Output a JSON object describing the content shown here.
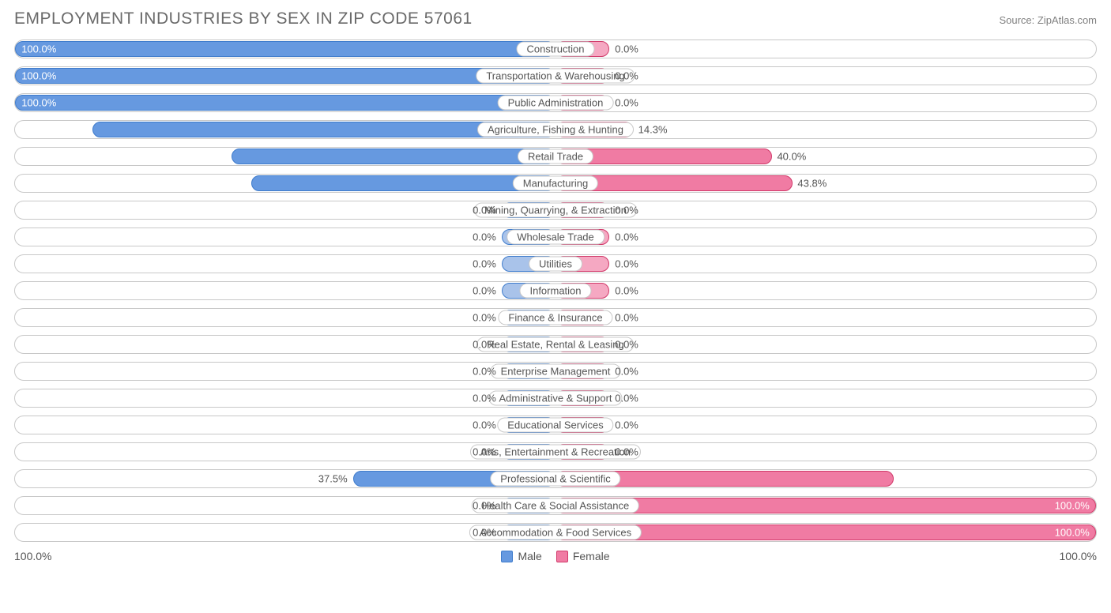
{
  "title": "EMPLOYMENT INDUSTRIES BY SEX IN ZIP CODE 57061",
  "source": "Source: ZipAtlas.com",
  "axis_left_label": "100.0%",
  "axis_right_label": "100.0%",
  "legend": {
    "male": "Male",
    "female": "Female"
  },
  "colors": {
    "male_fill": "#6699e0",
    "male_light": "#a9c3ea",
    "male_border": "#3f7ccc",
    "female_fill": "#f07ba3",
    "female_light": "#f5a8c2",
    "female_border": "#d13a6a",
    "row_border": "#c8c8c8",
    "text": "#555555",
    "text_white": "#ffffff"
  },
  "chart": {
    "type": "diverging_bar",
    "min_bar_pct": 10,
    "rows": [
      {
        "label": "Construction",
        "male": 100.0,
        "female": 0.0
      },
      {
        "label": "Transportation & Warehousing",
        "male": 100.0,
        "female": 0.0
      },
      {
        "label": "Public Administration",
        "male": 100.0,
        "female": 0.0
      },
      {
        "label": "Agriculture, Fishing & Hunting",
        "male": 85.7,
        "female": 14.3
      },
      {
        "label": "Retail Trade",
        "male": 60.0,
        "female": 40.0
      },
      {
        "label": "Manufacturing",
        "male": 56.3,
        "female": 43.8
      },
      {
        "label": "Mining, Quarrying, & Extraction",
        "male": 0.0,
        "female": 0.0
      },
      {
        "label": "Wholesale Trade",
        "male": 0.0,
        "female": 0.0
      },
      {
        "label": "Utilities",
        "male": 0.0,
        "female": 0.0
      },
      {
        "label": "Information",
        "male": 0.0,
        "female": 0.0
      },
      {
        "label": "Finance & Insurance",
        "male": 0.0,
        "female": 0.0
      },
      {
        "label": "Real Estate, Rental & Leasing",
        "male": 0.0,
        "female": 0.0
      },
      {
        "label": "Enterprise Management",
        "male": 0.0,
        "female": 0.0
      },
      {
        "label": "Administrative & Support",
        "male": 0.0,
        "female": 0.0
      },
      {
        "label": "Educational Services",
        "male": 0.0,
        "female": 0.0
      },
      {
        "label": "Arts, Entertainment & Recreation",
        "male": 0.0,
        "female": 0.0
      },
      {
        "label": "Professional & Scientific",
        "male": 37.5,
        "female": 62.5
      },
      {
        "label": "Health Care & Social Assistance",
        "male": 0.0,
        "female": 100.0
      },
      {
        "label": "Accommodation & Food Services",
        "male": 0.0,
        "female": 100.0
      }
    ]
  }
}
